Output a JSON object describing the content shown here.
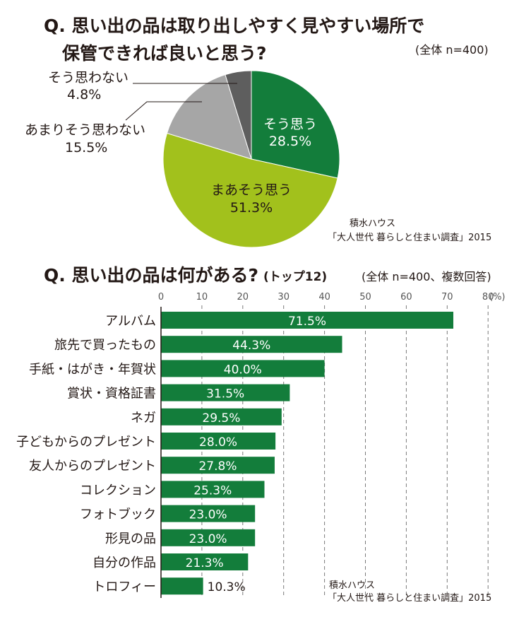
{
  "pie": {
    "title_line1": "Q. 思い出の品は取り出しやすく見やすい場所で",
    "title_line2": "保管できれば良いと思う?",
    "note": "(全体 n=400)",
    "source_line1": "積水ハウス",
    "source_line2": "「大人世代 暮らしと住まい調査」2015"
  },
  "bar": {
    "title": "Q. 思い出の品は何がある?",
    "title_suffix": "(トップ12)",
    "note": "(全体 n=400、複数回答)",
    "unit_label": "(%)",
    "source_line1": "積水ハウス",
    "source_line2": "「大人世代 暮らしと住まい調査」2015"
  },
  "chart_data": [
    {
      "type": "pie",
      "title": "Q. 思い出の品は取り出しやすく見やすい場所で保管できれば良いと思う?",
      "categories": [
        "そう思う",
        "まあそう思う",
        "あまりそう思わない",
        "そう思わない"
      ],
      "values": [
        28.5,
        51.3,
        15.5,
        4.8
      ],
      "value_labels": [
        "28.5%",
        "51.3%",
        "15.5%",
        "4.8%"
      ],
      "colors": [
        "#137d3b",
        "#a2c11c",
        "#a6a6a6",
        "#5e5e5e"
      ]
    },
    {
      "type": "bar",
      "orientation": "horizontal",
      "title": "Q. 思い出の品は何がある?(トップ12)",
      "categories": [
        "アルバム",
        "旅先で買ったもの",
        "手紙・はがき・年賀状",
        "賞状・資格証書",
        "ネガ",
        "子どもからのプレゼント",
        "友人からのプレゼント",
        "コレクション",
        "フォトブック",
        "形見の品",
        "自分の作品",
        "トロフィー"
      ],
      "values": [
        71.5,
        44.3,
        40.0,
        31.5,
        29.5,
        28.0,
        27.8,
        25.3,
        23.0,
        23.0,
        21.3,
        10.3
      ],
      "value_labels": [
        "71.5%",
        "44.3%",
        "40.0%",
        "31.5%",
        "29.5%",
        "28.0%",
        "27.8%",
        "25.3%",
        "23.0%",
        "23.0%",
        "21.3%",
        "10.3%"
      ],
      "xticks": [
        "0",
        "10",
        "20",
        "30",
        "40",
        "50",
        "60",
        "70",
        "80"
      ],
      "xlim": [
        0,
        80
      ],
      "grid": true,
      "color": "#137d3b"
    }
  ]
}
